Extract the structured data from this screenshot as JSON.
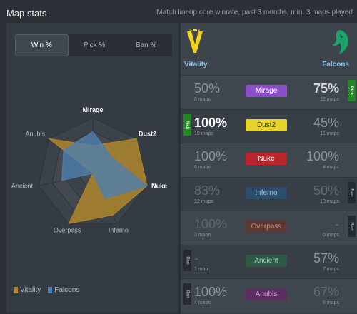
{
  "header": {
    "title": "Map stats",
    "subtitle": "Match lineup core winrate, past 3 months, min. 3 maps played"
  },
  "tabs": [
    {
      "label": "Win %",
      "active": true
    },
    {
      "label": "Pick %",
      "active": false
    },
    {
      "label": "Ban %",
      "active": false
    }
  ],
  "radar": {
    "axes": [
      "Mirage",
      "Dust2",
      "Nuke",
      "Inferno",
      "Overpass",
      "Ancient",
      "Anubis"
    ],
    "highlighted_axes": [
      "Mirage",
      "Dust2",
      "Nuke"
    ],
    "series": [
      {
        "name": "Vitality",
        "color": "#b58a2b",
        "values": [
          50,
          100,
          100,
          83,
          100,
          0,
          100
        ]
      },
      {
        "name": "Falcons",
        "color": "#4f7fae",
        "values": [
          75,
          45,
          100,
          50,
          0,
          57,
          67
        ]
      }
    ]
  },
  "legend": [
    {
      "label": "Vitality",
      "color": "#b58a2b"
    },
    {
      "label": "Falcons",
      "color": "#4f7fae"
    }
  ],
  "teams": {
    "left": {
      "name": "Vitality",
      "logo_icon": "vitality-logo-icon",
      "color": "#f2d21b"
    },
    "right": {
      "name": "Falcons",
      "logo_icon": "falcons-logo-icon",
      "color": "#1aa36a"
    }
  },
  "maps": [
    {
      "name": "Mirage",
      "badge_color": "#8b4fc9",
      "badge_text_color": "#ffffff",
      "left": {
        "pct": "50%",
        "maps": "8 maps",
        "tone": "mid"
      },
      "right": {
        "pct": "75%",
        "maps": "12 maps",
        "tone": "strong"
      },
      "tag": {
        "side": "right",
        "type": "pick",
        "label": "Pick"
      }
    },
    {
      "name": "Dust2",
      "badge_color": "#e6d32a",
      "badge_text_color": "#2b2b2b",
      "left": {
        "pct": "100%",
        "maps": "10 maps",
        "tone": "bright"
      },
      "right": {
        "pct": "45%",
        "maps": "11 maps",
        "tone": "mid"
      },
      "tag": {
        "side": "left",
        "type": "pick",
        "label": "Pick"
      }
    },
    {
      "name": "Nuke",
      "badge_color": "#b8262b",
      "badge_text_color": "#ffffff",
      "left": {
        "pct": "100%",
        "maps": "6 maps",
        "tone": "mid"
      },
      "right": {
        "pct": "100%",
        "maps": "4 maps",
        "tone": "mid"
      },
      "tag": null
    },
    {
      "name": "Inferno",
      "badge_color": "#2c4d6e",
      "badge_text_color": "#a9c4de",
      "left": {
        "pct": "83%",
        "maps": "12 maps",
        "tone": "dim"
      },
      "right": {
        "pct": "50%",
        "maps": "10 maps",
        "tone": "dim"
      },
      "tag": {
        "side": "right",
        "type": "ban",
        "label": "Ban"
      }
    },
    {
      "name": "Overpass",
      "badge_color": "#5b3a36",
      "badge_text_color": "#c98f7d",
      "left": {
        "pct": "100%",
        "maps": "3 maps",
        "tone": "dim"
      },
      "right": {
        "pct": "-",
        "maps": "0 maps",
        "tone": "dim"
      },
      "tag": {
        "side": "right",
        "type": "ban",
        "label": "Ban"
      }
    },
    {
      "name": "Ancient",
      "badge_color": "#2f5a45",
      "badge_text_color": "#9fcfb4",
      "left": {
        "pct": "-",
        "maps": "1 map",
        "tone": "dim"
      },
      "right": {
        "pct": "57%",
        "maps": "7 maps",
        "tone": "mid"
      },
      "tag": {
        "side": "left",
        "type": "ban",
        "label": "Ban"
      }
    },
    {
      "name": "Anubis",
      "badge_color": "#5a2f5e",
      "badge_text_color": "#d49ad8",
      "left": {
        "pct": "100%",
        "maps": "4 maps",
        "tone": "mid"
      },
      "right": {
        "pct": "67%",
        "maps": "6 maps",
        "tone": "dim"
      },
      "tag": {
        "side": "left",
        "type": "ban",
        "label": "Ban"
      }
    }
  ]
}
